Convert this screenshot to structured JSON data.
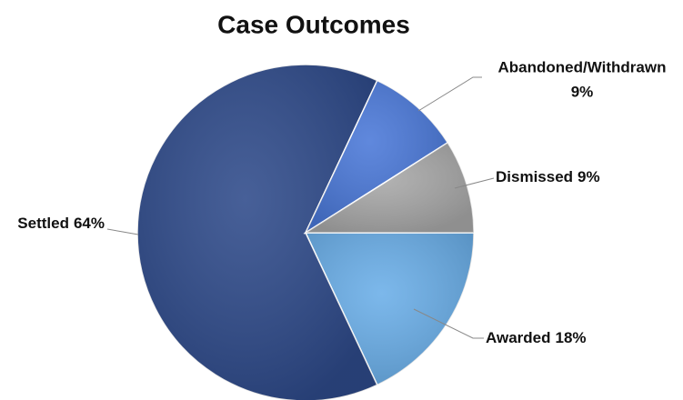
{
  "chart_data": {
    "type": "pie",
    "title": "Case Outcomes",
    "categories": [
      "Awarded",
      "Settled",
      "Abandoned/Withdrawn",
      "Dismissed"
    ],
    "values": [
      18,
      64,
      9,
      9
    ],
    "value_labels": [
      "18%",
      "64%",
      "9%",
      "9%"
    ],
    "colors": [
      "#6aaee8",
      "#2e4a8a",
      "#4a78d8",
      "#a8a8a8"
    ]
  }
}
